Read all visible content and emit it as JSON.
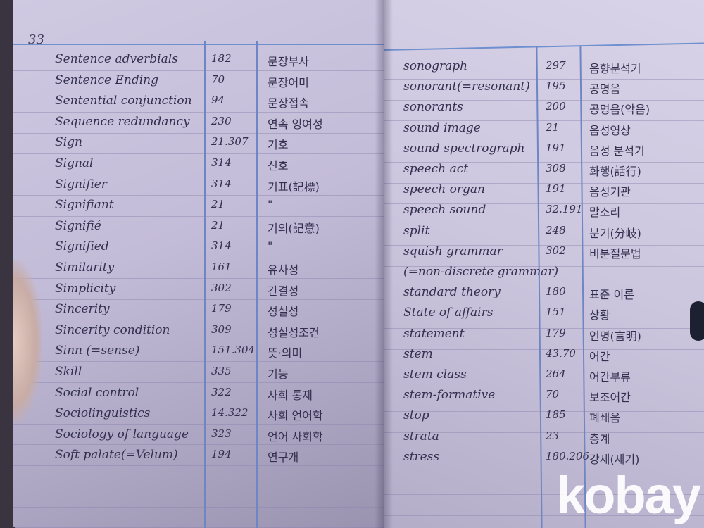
{
  "page_number": "33",
  "left_entries": [
    {
      "term": "Sentence adverbials",
      "page": "182",
      "korean": "문장부사"
    },
    {
      "term": "Sentence Ending",
      "page": "70",
      "korean": "문장어미"
    },
    {
      "term": "Sentential conjunction",
      "page": "94",
      "korean": "문장접속"
    },
    {
      "term": "Sequence redundancy",
      "page": "230",
      "korean": "연속 잉여성"
    },
    {
      "term": "Sign",
      "page": "21.307",
      "korean": "기호"
    },
    {
      "term": "Signal",
      "page": "314",
      "korean": "신호"
    },
    {
      "term": "Signifier",
      "page": "314",
      "korean": "기표(記標)"
    },
    {
      "term": "Signifiant",
      "page": "21",
      "korean": "\""
    },
    {
      "term": "Signifié",
      "page": "21",
      "korean": "기의(記意)"
    },
    {
      "term": "Signified",
      "page": "314",
      "korean": "\""
    },
    {
      "term": "Similarity",
      "page": "161",
      "korean": "유사성"
    },
    {
      "term": "Simplicity",
      "page": "302",
      "korean": "간결성"
    },
    {
      "term": "Sincerity",
      "page": "179",
      "korean": "성실성"
    },
    {
      "term": "Sincerity condition",
      "page": "309",
      "korean": "성실성조건"
    },
    {
      "term": "Sinn (=sense)",
      "page": "151.304",
      "korean": "뜻·의미"
    },
    {
      "term": "Skill",
      "page": "335",
      "korean": "기능"
    },
    {
      "term": "Social control",
      "page": "322",
      "korean": "사회 통제"
    },
    {
      "term": "Sociolinguistics",
      "page": "14.322",
      "korean": "사회 언어학"
    },
    {
      "term": "Sociology of language",
      "page": "323",
      "korean": "언어 사회학"
    },
    {
      "term": "Soft palate(=Velum)",
      "page": "194",
      "korean": "연구개"
    }
  ],
  "right_entries": [
    {
      "term": "sonograph",
      "page": "297",
      "korean": "음향분석기"
    },
    {
      "term": "sonorant(=resonant)",
      "page": "195",
      "korean": "공명음"
    },
    {
      "term": "sonorants",
      "page": "200",
      "korean": "공명음(악음)"
    },
    {
      "term": "sound image",
      "page": "21",
      "korean": "음성영상"
    },
    {
      "term": "sound spectrograph",
      "page": "191",
      "korean": "음성 분석기"
    },
    {
      "term": "speech act",
      "page": "308",
      "korean": "화행(話行)"
    },
    {
      "term": "speech organ",
      "page": "191",
      "korean": "음성기관"
    },
    {
      "term": "speech sound",
      "page": "32.191",
      "korean": "말소리"
    },
    {
      "term": "split",
      "page": "248",
      "korean": "분기(分岐)"
    },
    {
      "term": "squish grammar",
      "page": "302",
      "korean": "비분절문법"
    },
    {
      "term": "(=non-discrete grammar)",
      "page": "",
      "korean": ""
    },
    {
      "term": "standard theory",
      "page": "180",
      "korean": "표준 이론"
    },
    {
      "term": "State of affairs",
      "page": "151",
      "korean": "상황"
    },
    {
      "term": "statement",
      "page": "179",
      "korean": "언명(言明)"
    },
    {
      "term": "stem",
      "page": "43.70",
      "korean": "어간"
    },
    {
      "term": "stem class",
      "page": "264",
      "korean": "어간부류"
    },
    {
      "term": "stem-formative",
      "page": "70",
      "korean": "보조어간"
    },
    {
      "term": "stop",
      "page": "185",
      "korean": "폐쇄음"
    },
    {
      "term": "strata",
      "page": "23",
      "korean": "층계"
    },
    {
      "term": "stress",
      "page": "180.206",
      "korean": "강세(세기)"
    }
  ],
  "watermark": "kobay",
  "colors": {
    "ink": "#33304f",
    "rule_blue": "#6f86c4",
    "paper": "#cfc9e2"
  }
}
